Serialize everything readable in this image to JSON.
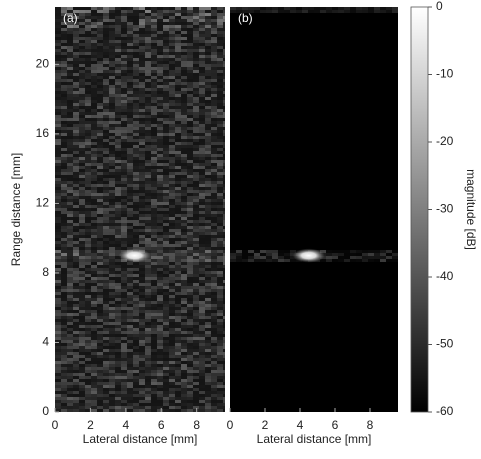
{
  "chart_data": [
    {
      "type": "image",
      "annotation": "(a)",
      "xlabel": "Lateral distance [mm]",
      "ylabel": "Range distance [mm]",
      "xlim": [
        0,
        9.6
      ],
      "ylim": [
        23.3,
        0
      ],
      "xticks": [
        0,
        2,
        4,
        6,
        8
      ],
      "yticks": [
        0,
        4,
        8,
        12,
        16,
        20
      ],
      "target": {
        "x": 4.5,
        "y": 9
      },
      "background": "speckle"
    },
    {
      "type": "image",
      "annotation": "(b)",
      "xlabel": "Lateral distance [mm]",
      "xlim": [
        0,
        9.6
      ],
      "ylim": [
        23.3,
        0
      ],
      "xticks": [
        0,
        2,
        4,
        6,
        8
      ],
      "target": {
        "x": 4.5,
        "y": 9
      },
      "background": "dark"
    },
    {
      "type": "colorbar",
      "ylabel": "magnitude [dB]",
      "ylim": [
        -60,
        0
      ],
      "yticks": [
        0,
        -10,
        -20,
        -30,
        -40,
        -50,
        -60
      ]
    }
  ]
}
